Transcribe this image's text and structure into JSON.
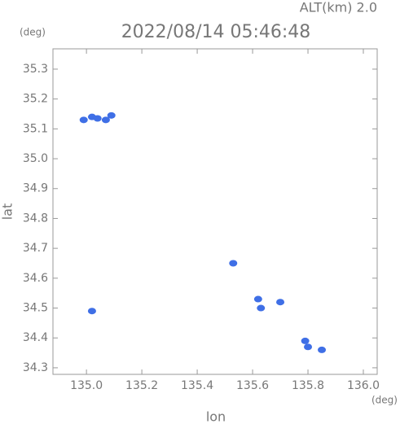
{
  "chart_data": {
    "type": "scatter",
    "header": "ALT(km) 2.0",
    "title": "2022/08/14 05:46:48",
    "y_unit": "(deg)",
    "x_unit": "(deg)",
    "y_label": "lat",
    "x_label": "lon",
    "xlim": [
      134.879,
      136.05
    ],
    "ylim": [
      34.278,
      35.368
    ],
    "xticks": [
      {
        "value": 135,
        "label": "135.0"
      },
      135.2,
      135.4,
      135.6,
      135.8,
      {
        "value": 136,
        "label": "136.0"
      }
    ],
    "yticks": [
      34.3,
      34.4,
      34.5,
      34.6,
      34.7,
      34.8,
      34.9,
      {
        "value": 35,
        "label": "35.0"
      },
      35.1,
      35.2,
      35.3
    ],
    "series": [
      {
        "color": "#3f6fe6",
        "x": [
          134.99,
          135.02,
          135.04,
          135.07,
          135.09,
          135.02,
          135.53,
          135.62,
          135.63,
          135.7,
          135.79,
          135.8,
          135.85
        ],
        "values": [
          35.13,
          35.14,
          35.135,
          35.13,
          35.145,
          34.49,
          34.65,
          34.53,
          34.5,
          34.52,
          34.39,
          34.37,
          34.36
        ]
      }
    ]
  }
}
